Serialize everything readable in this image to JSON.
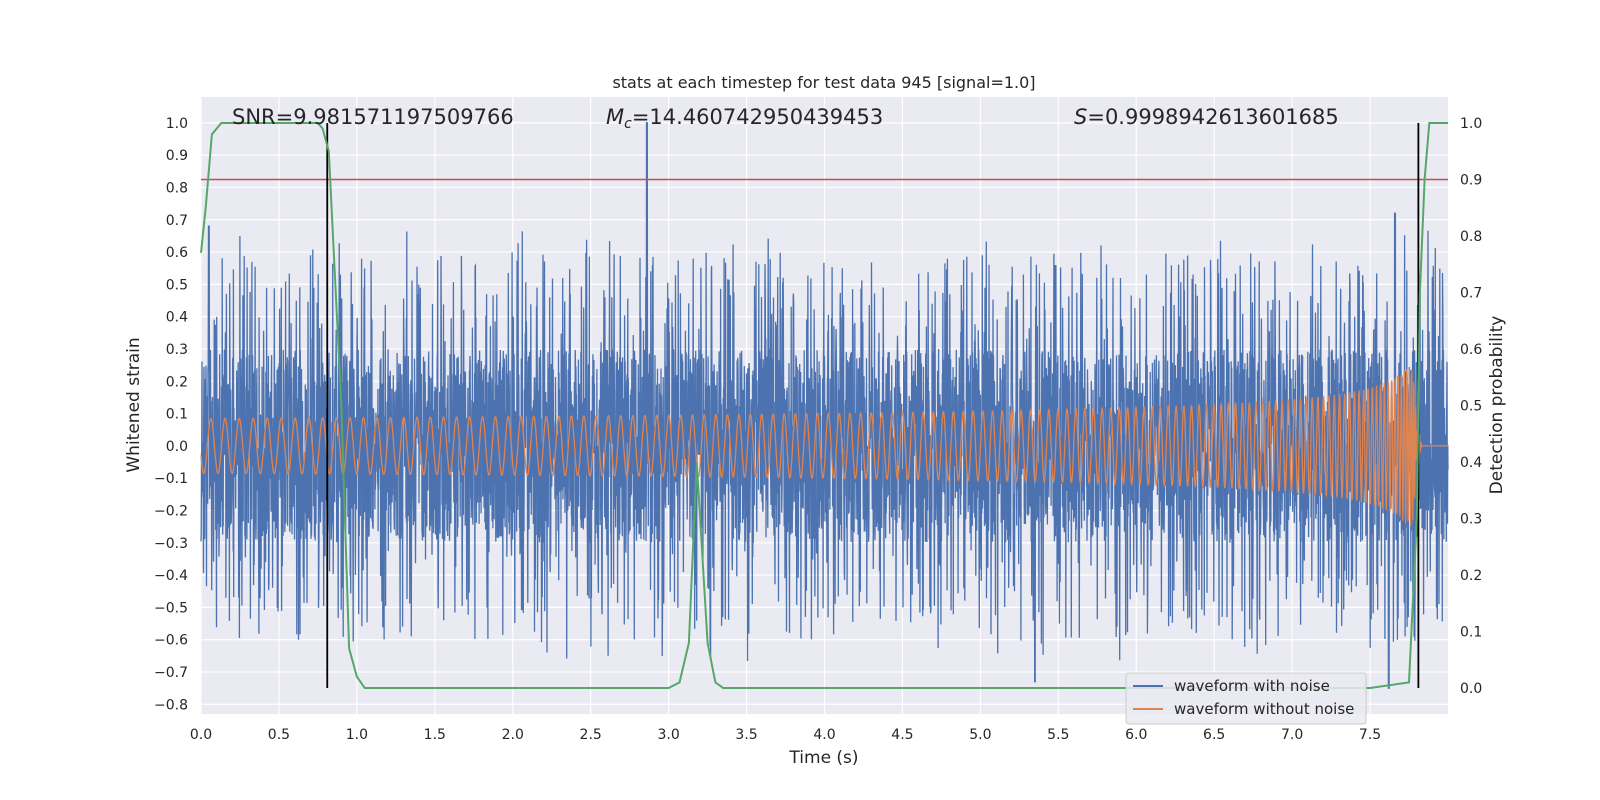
{
  "chart_data": {
    "type": "line",
    "title": "stats at each timestep for test data 945 [signal=1.0]",
    "xlabel": "Time (s)",
    "ylabel": "Whitened strain",
    "y2label": "Detection probability",
    "xlim": [
      0.0,
      8.0
    ],
    "ylim": [
      -0.83,
      1.08
    ],
    "y2lim": [
      -0.046,
      1.046
    ],
    "x_ticks": [
      "0.0",
      "0.5",
      "1.0",
      "1.5",
      "2.0",
      "2.5",
      "3.0",
      "3.5",
      "4.0",
      "4.5",
      "5.0",
      "5.5",
      "6.0",
      "6.5",
      "7.0",
      "7.5"
    ],
    "y_ticks": [
      "1.0",
      "0.9",
      "0.8",
      "0.7",
      "0.6",
      "0.5",
      "0.4",
      "0.3",
      "0.2",
      "0.1",
      "0.0",
      "−0.1",
      "−0.2",
      "−0.3",
      "−0.4",
      "−0.5",
      "−0.6",
      "−0.7",
      "−0.8"
    ],
    "y2_ticks": [
      "1.0",
      "0.9",
      "0.8",
      "0.7",
      "0.6",
      "0.5",
      "0.4",
      "0.3",
      "0.2",
      "0.1",
      "0.0"
    ],
    "annotations": {
      "snr": "SNR=9.981571197509766",
      "mc_symbol": "M",
      "mc_sub": "c",
      "mc_value": "=14.460742950439453",
      "s_symbol": "S",
      "s_value": "=0.9998942613601685"
    },
    "threshold_y": 0.9,
    "vertical_markers_x": [
      0.81,
      7.81
    ],
    "grid": true,
    "legend_position": "lower-right",
    "legend": [
      "waveform with noise",
      "waveform without noise"
    ],
    "series": [
      {
        "name": "waveform with noise",
        "axis": "left",
        "color": "#4c72b0",
        "description": "dense noisy strain time series from 0 to 8 s, amplitude roughly ±0.5, spikes up to 1.0 near t=2.86 s"
      },
      {
        "name": "waveform without noise",
        "axis": "left",
        "color": "#dd8452",
        "description": "inspiral chirp, amplitude growing from ~0.01 to ~0.35 with merger at t≈7.8 s"
      },
      {
        "axis": "right",
        "color": "#55a868",
        "x": [
          0.0,
          0.03,
          0.07,
          0.13,
          0.2,
          0.3,
          0.4,
          0.5,
          0.6,
          0.7,
          0.75,
          0.78,
          0.82,
          0.9,
          0.95,
          1.0,
          1.05,
          1.1,
          1.5,
          2.0,
          2.5,
          2.9,
          3.0,
          3.07,
          3.13,
          3.18,
          3.25,
          3.3,
          3.35,
          3.4,
          4.0,
          5.0,
          6.0,
          7.0,
          7.5,
          7.75,
          7.8,
          7.82,
          7.85,
          7.88,
          7.95,
          8.0
        ],
        "values": [
          0.77,
          0.85,
          0.98,
          1.0,
          1.0,
          1.0,
          1.0,
          1.0,
          1.0,
          1.0,
          1.0,
          0.99,
          0.95,
          0.5,
          0.07,
          0.02,
          0.0,
          0.0,
          0.0,
          0.0,
          0.0,
          0.0,
          0.0,
          0.01,
          0.08,
          0.4,
          0.08,
          0.01,
          0.0,
          0.0,
          0.0,
          0.0,
          0.0,
          0.0,
          0.0,
          0.01,
          0.3,
          0.7,
          0.9,
          1.0,
          1.0,
          1.0
        ]
      }
    ],
    "colors": {
      "background": "#eaeaf2",
      "grid": "#ffffff",
      "threshold": "#c44e52",
      "marker": "#000000"
    }
  }
}
